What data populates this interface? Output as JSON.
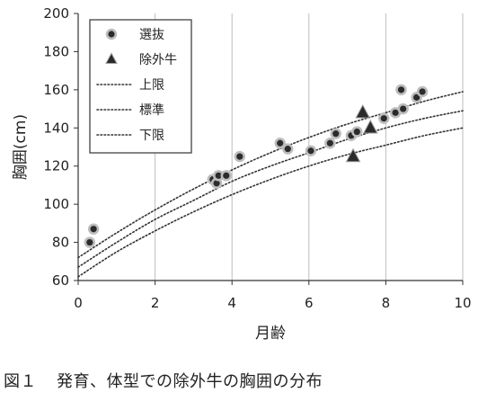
{
  "caption": {
    "figure_no": "図１",
    "text": "発育、体型での除外牛の胸囲の分布"
  },
  "chart_data": {
    "type": "scatter",
    "xlabel": "月齢",
    "ylabel": "胸囲(cm)",
    "xlim": [
      0,
      10
    ],
    "ylim": [
      60,
      200
    ],
    "xticks": [
      0,
      2,
      4,
      6,
      8,
      10
    ],
    "yticks": [
      60,
      80,
      100,
      120,
      140,
      160,
      180,
      200
    ],
    "grid": "vertical",
    "legend_position": "top-left",
    "series": [
      {
        "name": "選抜",
        "marker": "circle",
        "color": "#333333",
        "points": [
          [
            0.3,
            80
          ],
          [
            0.4,
            87
          ],
          [
            3.5,
            113
          ],
          [
            3.6,
            111
          ],
          [
            3.65,
            115
          ],
          [
            3.85,
            115
          ],
          [
            4.2,
            125
          ],
          [
            5.25,
            132
          ],
          [
            5.45,
            129
          ],
          [
            6.05,
            128
          ],
          [
            6.55,
            132
          ],
          [
            6.7,
            137
          ],
          [
            7.1,
            136
          ],
          [
            7.25,
            138
          ],
          [
            7.95,
            145
          ],
          [
            8.25,
            148
          ],
          [
            8.45,
            150
          ],
          [
            8.4,
            160
          ],
          [
            8.8,
            156
          ],
          [
            8.95,
            159
          ]
        ]
      },
      {
        "name": "除外牛",
        "marker": "triangle",
        "color": "#333333",
        "points": [
          [
            7.15,
            125
          ],
          [
            7.4,
            148
          ],
          [
            7.6,
            140
          ]
        ]
      }
    ],
    "curves": [
      {
        "name": "上限",
        "style": "dotted",
        "x": [
          0,
          1,
          2,
          3,
          4,
          5,
          6,
          7,
          8,
          9,
          10
        ],
        "y": [
          72,
          85,
          97,
          108,
          118,
          127,
          135,
          142,
          148,
          154,
          159
        ]
      },
      {
        "name": "標準",
        "style": "dotted",
        "x": [
          0,
          1,
          2,
          3,
          4,
          5,
          6,
          7,
          8,
          9,
          10
        ],
        "y": [
          67,
          80,
          92,
          102,
          112,
          120,
          127,
          134,
          140,
          145,
          149
        ]
      },
      {
        "name": "下限",
        "style": "dotted",
        "x": [
          0,
          1,
          2,
          3,
          4,
          5,
          6,
          7,
          8,
          9,
          10
        ],
        "y": [
          62,
          75,
          86,
          96,
          105,
          113,
          120,
          126,
          131,
          136,
          140
        ]
      }
    ],
    "legend": [
      {
        "label": "選抜",
        "symbol": "circle"
      },
      {
        "label": "除外牛",
        "symbol": "triangle"
      },
      {
        "label": "上限",
        "symbol": "dotted-line"
      },
      {
        "label": "標準",
        "symbol": "dotted-line"
      },
      {
        "label": "下限",
        "symbol": "dotted-line"
      }
    ]
  }
}
